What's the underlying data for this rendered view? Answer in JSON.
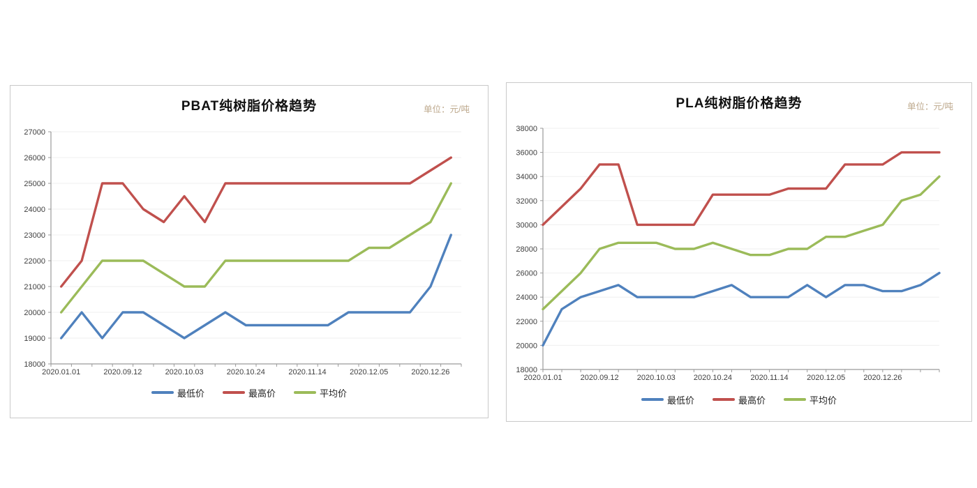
{
  "page": {
    "background": "#ffffff"
  },
  "legend_labels": [
    "最低价",
    "最高价",
    "平均价"
  ],
  "chart_data": [
    {
      "type": "line",
      "title": "PBAT纯树脂价格趋势",
      "unit": "单位：元/吨",
      "y_axis": {
        "min": 18000,
        "max": 27000,
        "step": 1000
      },
      "axis_mode": "between",
      "label_every": 3,
      "x_tick_labels": [
        "2020.01.01",
        "2020.09.12",
        "2020.10.03",
        "2020.10.24",
        "2020.11.14",
        "2020.12.05",
        "2020.12.26"
      ],
      "grid": true,
      "legend_position": "bottom",
      "series": [
        {
          "name": "最低价",
          "key": "min-price",
          "color": "#4f81bd",
          "values": [
            19000,
            20000,
            19000,
            20000,
            20000,
            19500,
            19000,
            19500,
            20000,
            19500,
            19500,
            19500,
            19500,
            19500,
            20000,
            20000,
            20000,
            20000,
            21000,
            23000
          ]
        },
        {
          "name": "最高价",
          "key": "max-price",
          "color": "#c0504d",
          "values": [
            21000,
            22000,
            25000,
            25000,
            24000,
            23500,
            24500,
            23500,
            25000,
            25000,
            25000,
            25000,
            25000,
            25000,
            25000,
            25000,
            25000,
            25000,
            25500,
            26000
          ]
        },
        {
          "name": "平均价",
          "key": "avg-price",
          "color": "#9bbb59",
          "values": [
            20000,
            21000,
            22000,
            22000,
            22000,
            21500,
            21000,
            21000,
            22000,
            22000,
            22000,
            22000,
            22000,
            22000,
            22000,
            22500,
            22500,
            23000,
            23500,
            25000
          ]
        }
      ]
    },
    {
      "type": "line",
      "title": "PLA纯树脂价格趋势",
      "unit": "单位：元/吨",
      "y_axis": {
        "min": 18000,
        "max": 38000,
        "step": 2000
      },
      "axis_mode": "on",
      "label_every": 3,
      "x_tick_labels": [
        "2020.01.01",
        "2020.09.12",
        "2020.10.03",
        "2020.10.24",
        "2020.11.14",
        "2020.12.05",
        "2020.12.26"
      ],
      "grid": true,
      "legend_position": "bottom",
      "series": [
        {
          "name": "最低价",
          "key": "min-price",
          "color": "#4f81bd",
          "values": [
            20000,
            23000,
            24000,
            24500,
            25000,
            24000,
            24000,
            24000,
            24000,
            24500,
            25000,
            24000,
            24000,
            24000,
            25000,
            24000,
            25000,
            25000,
            24500,
            24500,
            25000,
            26000
          ]
        },
        {
          "name": "最高价",
          "key": "max-price",
          "color": "#c0504d",
          "values": [
            30000,
            31500,
            33000,
            35000,
            35000,
            30000,
            30000,
            30000,
            30000,
            32500,
            32500,
            32500,
            32500,
            33000,
            33000,
            33000,
            35000,
            35000,
            35000,
            36000,
            36000,
            36000
          ]
        },
        {
          "name": "平均价",
          "key": "avg-price",
          "color": "#9bbb59",
          "values": [
            23000,
            24500,
            26000,
            28000,
            28500,
            28500,
            28500,
            28000,
            28000,
            28500,
            28000,
            27500,
            27500,
            28000,
            28000,
            29000,
            29000,
            29500,
            30000,
            32000,
            32500,
            34000
          ]
        }
      ]
    }
  ],
  "colors": {
    "axis": "#9a9a9a",
    "gridline": "#efefef",
    "tick_text": "#3f3f3f",
    "unit_text": "#bda88c"
  }
}
